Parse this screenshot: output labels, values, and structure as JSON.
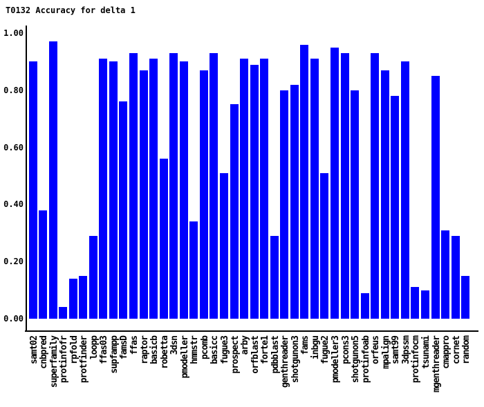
{
  "chart_data": {
    "type": "bar",
    "title": "T0132 Accuracy for delta 1",
    "xlabel": "",
    "ylabel": "",
    "ylim": [
      0.0,
      1.0
    ],
    "grid": false,
    "legend": false,
    "bar_color": "#0000ff",
    "axis_color": "#000000",
    "background_color": "#ffffff",
    "ytick_values": [
      0.0,
      0.2,
      0.4,
      0.6,
      0.8,
      1.0
    ],
    "ytick_labels": [
      "0.00",
      "0.20",
      "0.40",
      "0.60",
      "0.80",
      "1.00"
    ],
    "categories": [
      "samt02",
      "cnbpred",
      "superfamily",
      "protinfofr",
      "rpfold",
      "protfinder",
      "loopp",
      "ffas03",
      "supfampp",
      "famsD",
      "ffas",
      "raptor",
      "basicb",
      "robetta",
      "3dsn",
      "pmodeller",
      "hmmstr",
      "pcomb",
      "basicc",
      "fugue3",
      "prospect",
      "arby",
      "orfblast",
      "forte1",
      "pdbblast",
      "genthreader",
      "shotgunon3",
      "fams",
      "inbgu",
      "fugue2",
      "pmodeller3",
      "pcons3",
      "shotgunon5",
      "protinfoab",
      "orfeus",
      "mpalign",
      "samt99",
      "3dpssm",
      "protinfocm",
      "tsunami",
      "mgenthreader",
      "cmappro",
      "cornet",
      "random"
    ],
    "values": [
      0.9,
      0.38,
      0.97,
      0.04,
      0.14,
      0.15,
      0.29,
      0.91,
      0.9,
      0.76,
      0.93,
      0.87,
      0.91,
      0.56,
      0.93,
      0.9,
      0.34,
      0.87,
      0.93,
      0.51,
      0.75,
      0.91,
      0.89,
      0.91,
      0.29,
      0.8,
      0.82,
      0.96,
      0.91,
      0.51,
      0.95,
      0.93,
      0.8,
      0.09,
      0.93,
      0.87,
      0.78,
      0.9,
      0.11,
      0.1,
      0.85,
      0.31,
      0.29,
      0.15
    ]
  }
}
